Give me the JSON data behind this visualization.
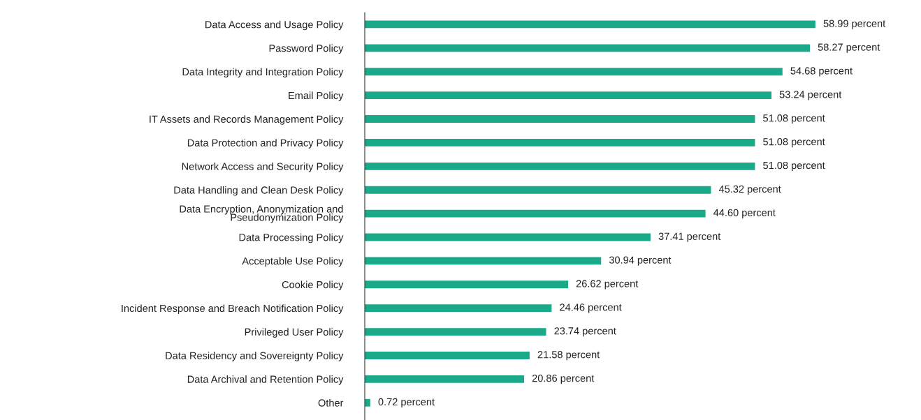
{
  "chart_data": {
    "type": "bar",
    "orientation": "horizontal",
    "categories": [
      "Data Access and Usage Policy",
      "Password Policy",
      "Data Integrity and Integration Policy",
      "Email Policy",
      "IT Assets and Records Management Policy",
      "Data Protection and Privacy Policy",
      "Network Access and Security Policy",
      "Data Handling and Clean Desk Policy",
      "Data Encryption, Anonymization and\nPseudonymization Policy",
      "Data Processing Policy",
      "Acceptable Use Policy",
      "Cookie Policy",
      "Incident Response and Breach Notification Policy",
      "Privileged User Policy",
      "Data Residency and Sovereignty Policy",
      "Data Archival and Retention Policy",
      "Other"
    ],
    "values": [
      58.99,
      58.27,
      54.68,
      53.24,
      51.08,
      51.08,
      51.08,
      45.32,
      44.6,
      37.41,
      30.94,
      26.62,
      24.46,
      23.74,
      21.58,
      20.86,
      0.72
    ],
    "value_labels": [
      "58.99 percent",
      "58.27 percent",
      "54.68 percent",
      "53.24 percent",
      "51.08 percent",
      "51.08 percent",
      "51.08 percent",
      "45.32 percent",
      "44.60 percent",
      "37.41 percent",
      "30.94 percent",
      "26.62 percent",
      "24.46 percent",
      "23.74 percent",
      "21.58 percent",
      "20.86 percent",
      "0.72 percent"
    ],
    "color": "#1aaa8a",
    "xlim": [
      0,
      59
    ],
    "grid": false,
    "legend": false
  }
}
